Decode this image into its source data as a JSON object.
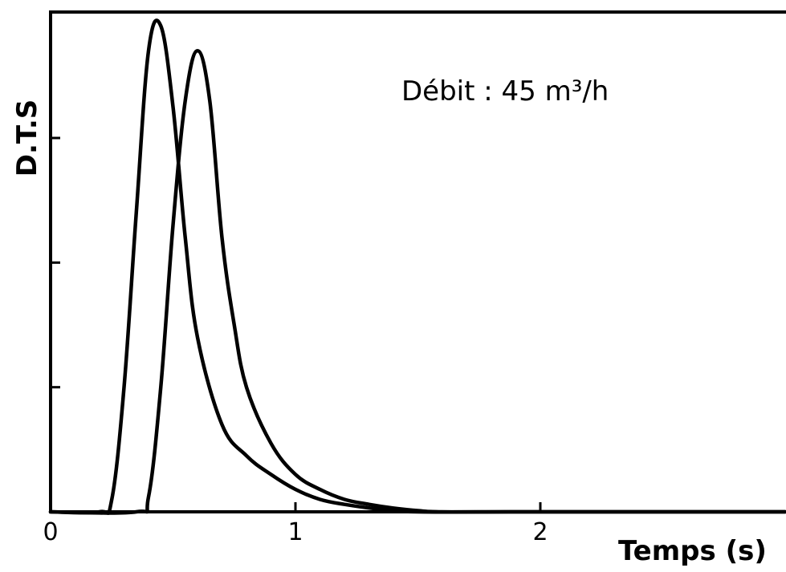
{
  "chart_data": {
    "type": "line",
    "title": "",
    "xlabel": "Temps (s)",
    "ylabel": "D.T.S",
    "xlim": [
      0,
      3
    ],
    "ylim": [
      0,
      4
    ],
    "x_ticks": [
      0,
      1,
      2
    ],
    "x_tick_labels": [
      "0",
      "1",
      "2"
    ],
    "y_ticks": [
      0,
      1,
      2,
      3
    ],
    "y_tick_labels": [],
    "grid": false,
    "annotations": [
      {
        "text": "Débit : 45 m³/h"
      }
    ],
    "series": [
      {
        "x": [
          0.0,
          0.2,
          0.25,
          0.3,
          0.35,
          0.4,
          0.45,
          0.5,
          0.55,
          0.6,
          0.7,
          0.8,
          0.9,
          1.0,
          1.1,
          1.2,
          1.35,
          1.5,
          2.0,
          3.0
        ],
        "y": [
          0.0,
          0.0,
          0.1,
          1.0,
          2.4,
          3.7,
          3.9,
          3.25,
          2.2,
          1.4,
          0.7,
          0.45,
          0.3,
          0.18,
          0.1,
          0.06,
          0.02,
          0.0,
          0.0,
          0.0
        ]
      },
      {
        "x": [
          0.0,
          0.35,
          0.4,
          0.45,
          0.5,
          0.55,
          0.6,
          0.65,
          0.7,
          0.75,
          0.8,
          0.9,
          1.0,
          1.1,
          1.2,
          1.3,
          1.4,
          1.5,
          1.6,
          2.0,
          3.0
        ],
        "y": [
          0.0,
          0.0,
          0.12,
          1.0,
          2.3,
          3.3,
          3.7,
          3.3,
          2.2,
          1.5,
          1.0,
          0.55,
          0.3,
          0.18,
          0.1,
          0.06,
          0.03,
          0.01,
          0.0,
          0.0,
          0.0
        ]
      }
    ]
  }
}
